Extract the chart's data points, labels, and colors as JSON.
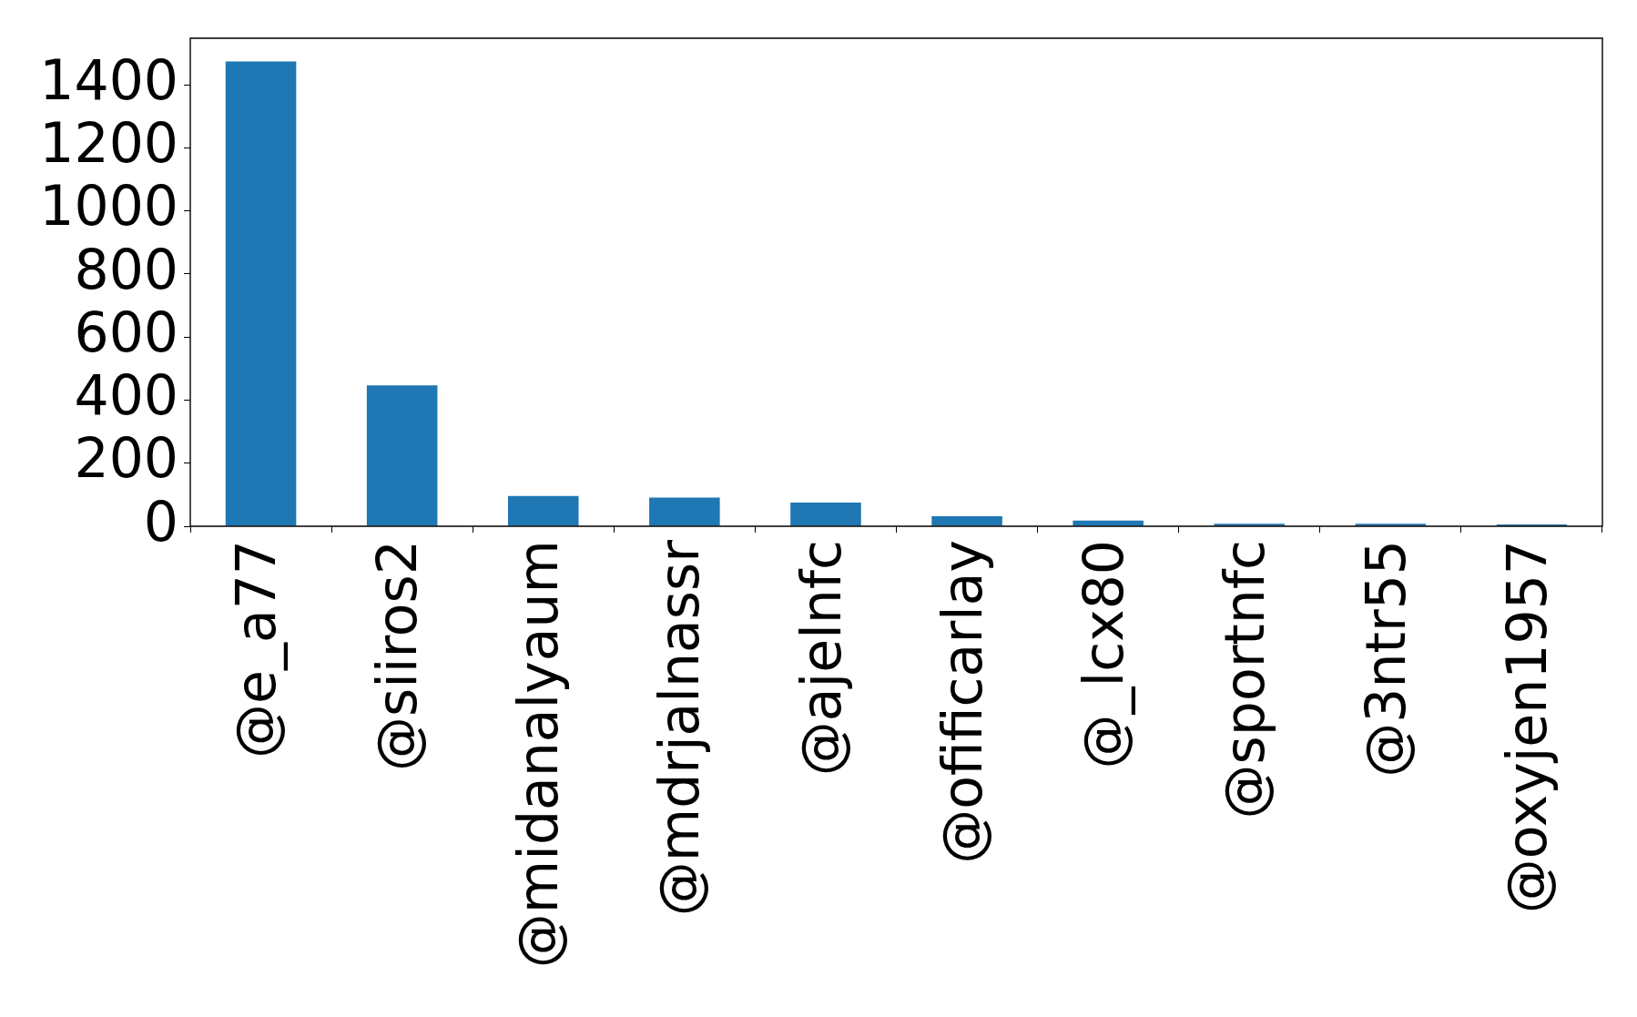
{
  "chart_data": {
    "type": "bar",
    "categories": [
      "@e_a77",
      "@siiros2",
      "@midanalyaum",
      "@mdrjalnassr",
      "@ajelnfc",
      "@ofificarlay",
      "@_lcx80",
      "@sportnfc",
      "@3ntr55",
      "@oxyjen1957"
    ],
    "values": [
      1474,
      447,
      96,
      91,
      75,
      32,
      18,
      8,
      8,
      6
    ],
    "color": "#1f77b4",
    "ylim": [
      0,
      1548
    ],
    "yticks": [
      0,
      200,
      400,
      600,
      800,
      1000,
      1200,
      1400
    ]
  }
}
